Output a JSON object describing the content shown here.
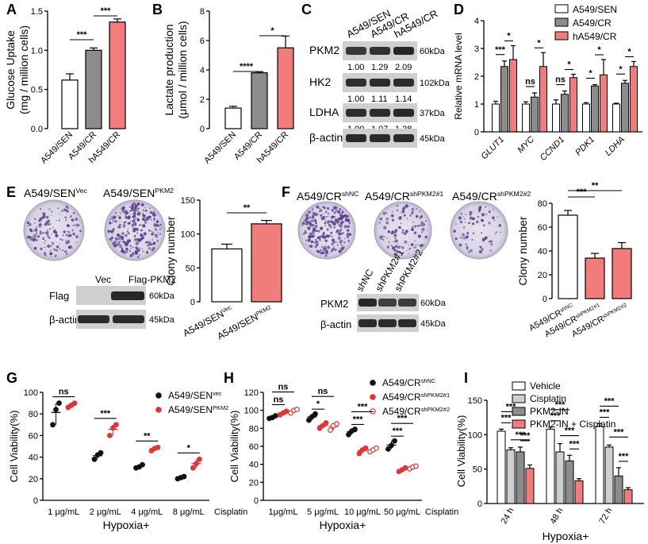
{
  "colors": {
    "white": "#ffffff",
    "gray": "#8c8c8c",
    "red": "#f27c7c",
    "redDark": "#e03535",
    "lightgray": "#cfcfcf",
    "black": "#111111"
  },
  "panel_letters": {
    "A": "A",
    "B": "B",
    "C": "C",
    "D": "D",
    "E": "E",
    "F": "F",
    "G": "G",
    "H": "H",
    "I": "I"
  },
  "blots": {
    "C": {
      "headers": [
        "A549/SEN",
        "A549/CR",
        "hA549/CR"
      ],
      "rows": [
        {
          "label": "PKM2",
          "kda": "60kDa",
          "values": [
            "1.00",
            "1.29",
            "2.09"
          ]
        },
        {
          "label": "HK2",
          "kda": "102kDa",
          "values": [
            "1.00",
            "1.11",
            "1.14"
          ]
        },
        {
          "label": "LDHA",
          "kda": "37kDa",
          "values": [
            "1.00",
            "1.07",
            "1.28"
          ]
        },
        {
          "label": "β-actin",
          "kda": "45kDa",
          "values": []
        }
      ]
    },
    "E": {
      "titles": [
        "A549/SEN",
        "A549/SEN"
      ],
      "sups": [
        "Vec",
        "PKM2"
      ],
      "headers": [
        "Vec",
        "Flag-PKM2"
      ],
      "rows": [
        {
          "label": "Flag",
          "kda": "60kDa"
        },
        {
          "label": "β-actin",
          "kda": "45kDa"
        }
      ]
    },
    "F": {
      "titles": [
        "A549/CR",
        "A549/CR",
        "A549/CR"
      ],
      "sups": [
        "shNC",
        "shPKM2#1",
        "shPKM2#2"
      ],
      "headers": [
        "shNC",
        "shPKM2#1",
        "shPKM2#2"
      ],
      "rows": [
        {
          "label": "PKM2",
          "kda": "60kDa"
        },
        {
          "label": "β-actin",
          "kda": "45kDa"
        }
      ]
    }
  },
  "chart_data": [
    {
      "id": "A",
      "type": "bar",
      "title": "",
      "ylabel": "Glucose Uptake",
      "ylabel2": "(mg / million cells)",
      "categories": [
        "A549/SEN",
        "A549/CR",
        "hA549/CR"
      ],
      "values": [
        0.62,
        1.0,
        1.36
      ],
      "errors": [
        0.08,
        0.03,
        0.04
      ],
      "ylim": [
        0,
        1.5
      ],
      "yticks": [
        "0.0",
        "0.5",
        "1.0",
        "1.5"
      ],
      "significance": [
        {
          "from": 0,
          "to": 1,
          "label": "***"
        },
        {
          "from": 1,
          "to": 2,
          "label": "***"
        }
      ]
    },
    {
      "id": "B",
      "type": "bar",
      "ylabel": "Lactate production",
      "ylabel2": "(μmol / million cells)",
      "categories": [
        "A549/SEN",
        "A549/CR",
        "hA549/CR"
      ],
      "values": [
        1.4,
        3.8,
        5.5
      ],
      "errors": [
        0.12,
        0.08,
        0.8
      ],
      "ylim": [
        0,
        8
      ],
      "yticks": [
        "0",
        "2",
        "4",
        "6",
        "8"
      ],
      "significance": [
        {
          "from": 0,
          "to": 1,
          "label": "****"
        },
        {
          "from": 1,
          "to": 2,
          "label": "*"
        }
      ]
    },
    {
      "id": "D",
      "type": "bar",
      "ylabel": "Relative mRNA level",
      "categories": [
        "GLUT1",
        "MYC",
        "CCND1",
        "PDK1",
        "LDHA"
      ],
      "series": [
        {
          "name": "A549/SEN",
          "values": [
            1.0,
            1.0,
            1.0,
            1.0,
            1.0
          ],
          "errors": [
            0.1,
            0.08,
            0.15,
            0.05,
            0.03
          ]
        },
        {
          "name": "A549/CR",
          "values": [
            2.35,
            1.25,
            1.35,
            1.65,
            1.75
          ],
          "errors": [
            0.2,
            0.15,
            0.12,
            0.05,
            0.1
          ]
        },
        {
          "name": "hA549/CR",
          "values": [
            2.6,
            2.35,
            1.95,
            2.05,
            2.35
          ],
          "errors": [
            0.5,
            0.5,
            0.12,
            0.55,
            0.18
          ]
        }
      ],
      "ylim": [
        0,
        4
      ],
      "yticks": [
        "0",
        "1",
        "2",
        "3",
        "4"
      ],
      "significance": [
        [
          "***",
          "*"
        ],
        [
          "ns",
          "*"
        ],
        [
          "ns",
          "*"
        ],
        [
          "*",
          "*"
        ],
        [
          "*",
          "*"
        ]
      ]
    },
    {
      "id": "E",
      "type": "bar",
      "ylabel": "Clony number",
      "categories": [
        "A549/SEN",
        "A549/SEN"
      ],
      "category_sups": [
        "Vec",
        "PKM2"
      ],
      "values": [
        78,
        115
      ],
      "errors": [
        7,
        5
      ],
      "ylim": [
        0,
        150
      ],
      "yticks": [
        "0",
        "50",
        "100",
        "150"
      ],
      "significance": [
        {
          "from": 0,
          "to": 1,
          "label": "**"
        }
      ]
    },
    {
      "id": "F",
      "type": "bar",
      "ylabel": "Clony number",
      "categories": [
        "A549/CR",
        "A549/CR",
        "A549/CR"
      ],
      "category_sups": [
        "shNC",
        "shPKM2#1",
        "shPKM2#2"
      ],
      "values": [
        70,
        34,
        42
      ],
      "errors": [
        4,
        4,
        5
      ],
      "ylim": [
        0,
        80
      ],
      "yticks": [
        "0",
        "20",
        "40",
        "60",
        "80"
      ],
      "significance": [
        {
          "from": 0,
          "to": 1,
          "label": "***"
        },
        {
          "from": 0,
          "to": 2,
          "label": "**"
        }
      ]
    },
    {
      "id": "G",
      "type": "scatter",
      "ylabel": "Cell Viability(%)",
      "xlabel": "Hypoxia+",
      "xlabel_right": "Cisplatin",
      "categories": [
        "1 μg/mL",
        "2 μg/mL",
        "4 μg/mL",
        "8 μg/mL"
      ],
      "series": [
        {
          "name": "A549/SEN",
          "sup": "vec",
          "points": [
            [
              70,
              84,
              90
            ],
            [
              38,
              42,
              44
            ],
            [
              30,
              31,
              33
            ],
            [
              20,
              21,
              22
            ]
          ]
        },
        {
          "name": "A549/SEN",
          "sup": "PKM2",
          "points": [
            [
              86,
              88,
              90
            ],
            [
              60,
              67,
              70
            ],
            [
              46,
              48,
              49
            ],
            [
              30,
              34,
              38
            ]
          ]
        }
      ],
      "ylim": [
        0,
        100
      ],
      "yticks": [
        "0",
        "20",
        "40",
        "60",
        "80",
        "100"
      ],
      "significance": [
        "ns",
        "***",
        "**",
        "*"
      ]
    },
    {
      "id": "H",
      "type": "scatter",
      "ylabel": "Cell Viability(%)",
      "xlabel": "Hypoxia+",
      "xlabel_right": "Cisplatin",
      "categories": [
        "1μg/mL",
        "5 μg/mL",
        "10 μg/mL",
        "50 μg/mL"
      ],
      "series": [
        {
          "name": "A549/CR",
          "sup": "shNC",
          "points": [
            [
              91,
              92,
              94
            ],
            [
              89,
              93,
              96
            ],
            [
              73,
              77,
              79
            ],
            [
              57,
              61,
              66
            ]
          ]
        },
        {
          "name": "A549/CR",
          "sup": "shPKM2#1",
          "points": [
            [
              95,
              97,
              99
            ],
            [
              80,
              83,
              86
            ],
            [
              52,
              56,
              58
            ],
            [
              32,
              34,
              36
            ]
          ]
        },
        {
          "name": "A549/CR",
          "sup": "shPKM2#2",
          "points": [
            [
              97,
              100,
              101
            ],
            [
              78,
              83,
              85
            ],
            [
              54,
              56,
              58
            ],
            [
              35,
              37,
              38
            ]
          ]
        }
      ],
      "ylim": [
        0,
        120
      ],
      "yticks": [
        "0",
        "20",
        "40",
        "60",
        "80",
        "100",
        "120"
      ],
      "significance": [
        [
          "ns",
          "ns"
        ],
        [
          "ns",
          "*"
        ],
        [
          "***",
          "***"
        ],
        [
          "***",
          "***"
        ]
      ]
    },
    {
      "id": "I",
      "type": "bar",
      "ylabel": "Cell Viability(%)",
      "xlabel": "Hypoxia+",
      "categories": [
        "24 h",
        "48 h",
        "72 h"
      ],
      "series": [
        {
          "name": "Vehicle",
          "values": [
            105,
            108,
            112
          ],
          "errors": [
            3,
            3,
            4
          ]
        },
        {
          "name": "Cisplatin",
          "values": [
            78,
            75,
            82
          ],
          "errors": [
            3,
            12,
            3
          ]
        },
        {
          "name": "PKM2-IN",
          "values": [
            75,
            62,
            40
          ],
          "errors": [
            7,
            8,
            12
          ]
        },
        {
          "name": "PKM2-IN + Cisplatin",
          "values": [
            51,
            33,
            20
          ],
          "errors": [
            5,
            3,
            3
          ]
        }
      ],
      "ylim": [
        0,
        150
      ],
      "yticks": [
        "0",
        "50",
        "100",
        "150"
      ],
      "sig_label": "***"
    }
  ]
}
